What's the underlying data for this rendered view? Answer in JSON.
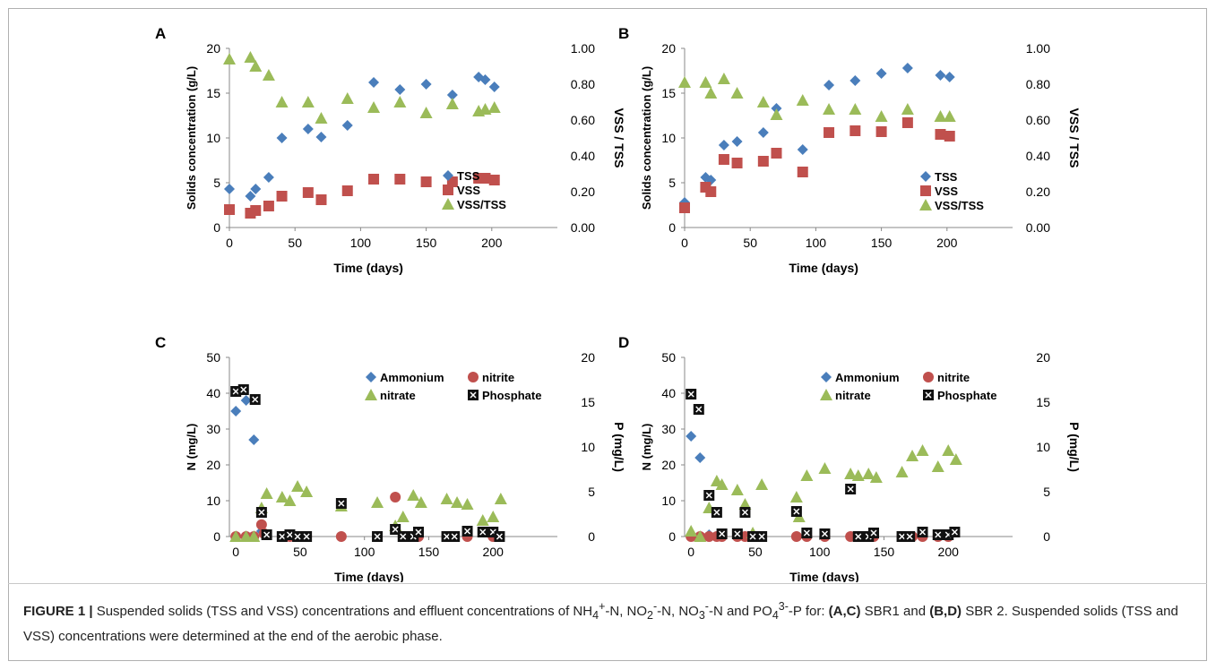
{
  "caption": {
    "figure_label": "FIGURE 1 |",
    "text_1": " Suspended solids (TSS and VSS) concentrations and effluent concentrations of NH",
    "sub_1": "4",
    "sup_1": "+",
    "text_2": "-N, NO",
    "sub_2": "2",
    "sup_2": "-",
    "text_3": "-N, NO",
    "sub_3": "3",
    "sup_3": "-",
    "text_4": "-N and PO",
    "sub_4": "4",
    "sup_4": "3-",
    "text_5": "-P for: ",
    "bold_1": "(A,C)",
    "text_6": " SBR1 and ",
    "bold_2": "(B,D)",
    "text_7": " SBR 2. Suspended solids (TSS and VSS) concentrations were determined at the end of the aerobic phase."
  },
  "colors": {
    "tss": "#4a7ebb",
    "vss": "#c0504d",
    "ratio": "#9bbb59",
    "phosphate": "#111111",
    "phosphate_mark": "#ffffff"
  },
  "chart_data": [
    {
      "panel": "A",
      "type": "scatter",
      "xlabel": "Time (days)",
      "ylabel": "Solids concentration (g/L)",
      "y2label": "VSS / TSS",
      "xlim": [
        0,
        250
      ],
      "ylim": [
        0,
        20
      ],
      "y2lim": [
        0,
        1
      ],
      "xticks": [
        "0",
        "50",
        "100",
        "150",
        "200"
      ],
      "yticks": [
        "0",
        "5",
        "10",
        "15",
        "20"
      ],
      "y2ticks": [
        "0.00",
        "0.20",
        "0.40",
        "0.60",
        "0.80",
        "1.00"
      ],
      "legend": [
        "TSS",
        "VSS",
        "VSS/TSS"
      ],
      "series": [
        {
          "name": "TSS",
          "marker": "diamond",
          "axis": "left",
          "x": [
            0,
            16,
            20,
            30,
            40,
            60,
            70,
            90,
            110,
            130,
            150,
            170,
            190,
            195,
            202
          ],
          "y": [
            4.3,
            3.5,
            4.3,
            5.6,
            10.0,
            11.0,
            10.1,
            11.4,
            16.2,
            15.4,
            16.0,
            14.8,
            16.8,
            16.5,
            15.7
          ]
        },
        {
          "name": "VSS",
          "marker": "square",
          "axis": "left",
          "x": [
            0,
            16,
            20,
            30,
            40,
            60,
            70,
            90,
            110,
            130,
            150,
            170,
            190,
            195,
            202
          ],
          "y": [
            2.0,
            1.6,
            1.9,
            2.4,
            3.5,
            3.9,
            3.1,
            4.1,
            5.4,
            5.4,
            5.1,
            5.1,
            5.5,
            5.5,
            5.3
          ]
        },
        {
          "name": "VSS/TSS",
          "marker": "triangle",
          "axis": "right",
          "x": [
            0,
            16,
            20,
            30,
            40,
            60,
            70,
            90,
            110,
            130,
            150,
            170,
            190,
            195,
            202
          ],
          "y": [
            0.94,
            0.95,
            0.9,
            0.85,
            0.7,
            0.7,
            0.61,
            0.72,
            0.67,
            0.7,
            0.64,
            0.69,
            0.65,
            0.66,
            0.67
          ]
        }
      ]
    },
    {
      "panel": "B",
      "type": "scatter",
      "xlabel": "Time (days)",
      "ylabel": "Solids concentration (g/L)",
      "y2label": "VSS / TSS",
      "xlim": [
        0,
        250
      ],
      "ylim": [
        0,
        20
      ],
      "y2lim": [
        0,
        1
      ],
      "xticks": [
        "0",
        "50",
        "100",
        "150",
        "200"
      ],
      "yticks": [
        "0",
        "5",
        "10",
        "15",
        "20"
      ],
      "y2ticks": [
        "0.00",
        "0.20",
        "0.40",
        "0.60",
        "0.80",
        "1.00"
      ],
      "legend": [
        "TSS",
        "VSS",
        "VSS/TSS"
      ],
      "series": [
        {
          "name": "TSS",
          "marker": "diamond",
          "axis": "left",
          "x": [
            0,
            16,
            20,
            30,
            40,
            60,
            70,
            90,
            110,
            130,
            150,
            170,
            195,
            202
          ],
          "y": [
            2.8,
            5.6,
            5.3,
            9.2,
            9.6,
            10.6,
            13.3,
            8.7,
            15.9,
            16.4,
            17.2,
            17.8,
            17.0,
            16.8
          ]
        },
        {
          "name": "VSS",
          "marker": "square",
          "axis": "left",
          "x": [
            0,
            16,
            20,
            30,
            40,
            60,
            70,
            90,
            110,
            130,
            150,
            170,
            195,
            202
          ],
          "y": [
            2.2,
            4.5,
            4.0,
            7.6,
            7.2,
            7.4,
            8.3,
            6.2,
            10.6,
            10.8,
            10.7,
            11.7,
            10.4,
            10.2
          ]
        },
        {
          "name": "VSS/TSS",
          "marker": "triangle",
          "axis": "right",
          "x": [
            0,
            16,
            20,
            30,
            40,
            60,
            70,
            90,
            110,
            130,
            150,
            170,
            195,
            202
          ],
          "y": [
            0.81,
            0.81,
            0.75,
            0.83,
            0.75,
            0.7,
            0.63,
            0.71,
            0.66,
            0.66,
            0.62,
            0.66,
            0.62,
            0.62
          ]
        }
      ]
    },
    {
      "panel": "C",
      "type": "scatter",
      "xlabel": "Time (days)",
      "ylabel": "N (mg/L)",
      "y2label": "P (mg/L)",
      "xlim": [
        -5,
        250
      ],
      "ylim": [
        0,
        50
      ],
      "y2lim": [
        0,
        20
      ],
      "xticks": [
        "0",
        "50",
        "100",
        "150",
        "200"
      ],
      "yticks": [
        "0",
        "10",
        "20",
        "30",
        "40",
        "50"
      ],
      "y2ticks": [
        "0",
        "5",
        "10",
        "15",
        "20"
      ],
      "legend": [
        "Ammonium",
        "nitrite",
        "nitrate",
        "Phosphate"
      ],
      "series": [
        {
          "name": "Ammonium",
          "marker": "diamond",
          "axis": "left",
          "x": [
            0,
            8,
            14,
            20,
            22
          ],
          "y": [
            35,
            38,
            27,
            1.5,
            0.5
          ]
        },
        {
          "name": "nitrite",
          "marker": "circle",
          "axis": "left",
          "x": [
            0,
            8,
            14,
            20,
            22,
            36,
            42,
            48,
            55,
            82,
            110,
            124,
            142,
            164,
            180,
            200
          ],
          "y": [
            0,
            0,
            0,
            3.3,
            0.8,
            0,
            0,
            0,
            0,
            0,
            0,
            11,
            0,
            0,
            0,
            0
          ]
        },
        {
          "name": "nitrate",
          "marker": "triangle",
          "axis": "left",
          "x": [
            0,
            8,
            14,
            20,
            24,
            36,
            42,
            48,
            55,
            82,
            110,
            124,
            130,
            138,
            144,
            164,
            172,
            180,
            192,
            200,
            206
          ],
          "y": [
            0,
            0,
            0,
            8,
            12,
            11,
            10,
            14,
            12.5,
            8.5,
            9.5,
            3,
            5.5,
            11.5,
            9.5,
            10.5,
            9.5,
            9,
            4.5,
            5.5,
            10.5
          ]
        },
        {
          "name": "Phosphate",
          "marker": "square-x",
          "axis": "right",
          "x": [
            0,
            6,
            15,
            20,
            24,
            36,
            42,
            48,
            55,
            82,
            110,
            124,
            130,
            138,
            142,
            164,
            170,
            180,
            192,
            200,
            205
          ],
          "y": [
            16.2,
            16.4,
            15.3,
            2.7,
            0.2,
            0,
            0.2,
            0,
            0,
            3.7,
            0,
            0.8,
            0,
            0,
            0.5,
            0,
            0,
            0.6,
            0.5,
            0.5,
            0
          ]
        }
      ]
    },
    {
      "panel": "D",
      "type": "scatter",
      "xlabel": "Time (days)",
      "ylabel": "N (mg/L)",
      "y2label": "P (mg/L)",
      "xlim": [
        -5,
        250
      ],
      "ylim": [
        0,
        50
      ],
      "y2lim": [
        0,
        20
      ],
      "xticks": [
        "0",
        "50",
        "100",
        "150",
        "200"
      ],
      "yticks": [
        "0",
        "10",
        "20",
        "30",
        "40",
        "50"
      ],
      "y2ticks": [
        "0",
        "5",
        "10",
        "15",
        "20"
      ],
      "legend": [
        "Ammonium",
        "nitrite",
        "nitrate",
        "Phosphate"
      ],
      "series": [
        {
          "name": "Ammonium",
          "marker": "diamond",
          "axis": "left",
          "x": [
            0,
            7,
            14
          ],
          "y": [
            28,
            22,
            0.5
          ]
        },
        {
          "name": "nitrite",
          "marker": "circle",
          "axis": "left",
          "x": [
            0,
            7,
            14,
            20,
            24,
            36,
            42,
            48,
            55,
            82,
            90,
            104,
            124,
            132,
            138,
            142,
            164,
            172,
            180,
            192,
            200
          ],
          "y": [
            0,
            0,
            0,
            0,
            0,
            0,
            0,
            0,
            0,
            0,
            0,
            0,
            0,
            0,
            0,
            0,
            0,
            0,
            0,
            0,
            0
          ]
        },
        {
          "name": "nitrate",
          "marker": "triangle",
          "axis": "left",
          "x": [
            0,
            7,
            14,
            20,
            24,
            36,
            42,
            48,
            55,
            82,
            84,
            90,
            104,
            124,
            130,
            138,
            144,
            164,
            172,
            180,
            192,
            200,
            206
          ],
          "y": [
            1.5,
            0,
            8,
            15.5,
            14.5,
            13,
            9,
            1,
            14.5,
            11,
            5.5,
            17,
            19,
            17.5,
            17,
            17.5,
            16.5,
            18,
            22.5,
            24,
            19.5,
            24,
            21.5
          ]
        },
        {
          "name": "Phosphate",
          "marker": "square-x",
          "axis": "right",
          "x": [
            0,
            6,
            14,
            20,
            24,
            36,
            42,
            48,
            55,
            82,
            90,
            104,
            124,
            130,
            138,
            142,
            164,
            170,
            180,
            192,
            200,
            205
          ],
          "y": [
            15.9,
            14.2,
            4.6,
            2.7,
            0.3,
            0.3,
            2.7,
            0,
            0,
            2.8,
            0.4,
            0.3,
            5.3,
            0,
            0,
            0.4,
            0,
            0,
            0.5,
            0.2,
            0.2,
            0.5
          ]
        }
      ]
    }
  ]
}
